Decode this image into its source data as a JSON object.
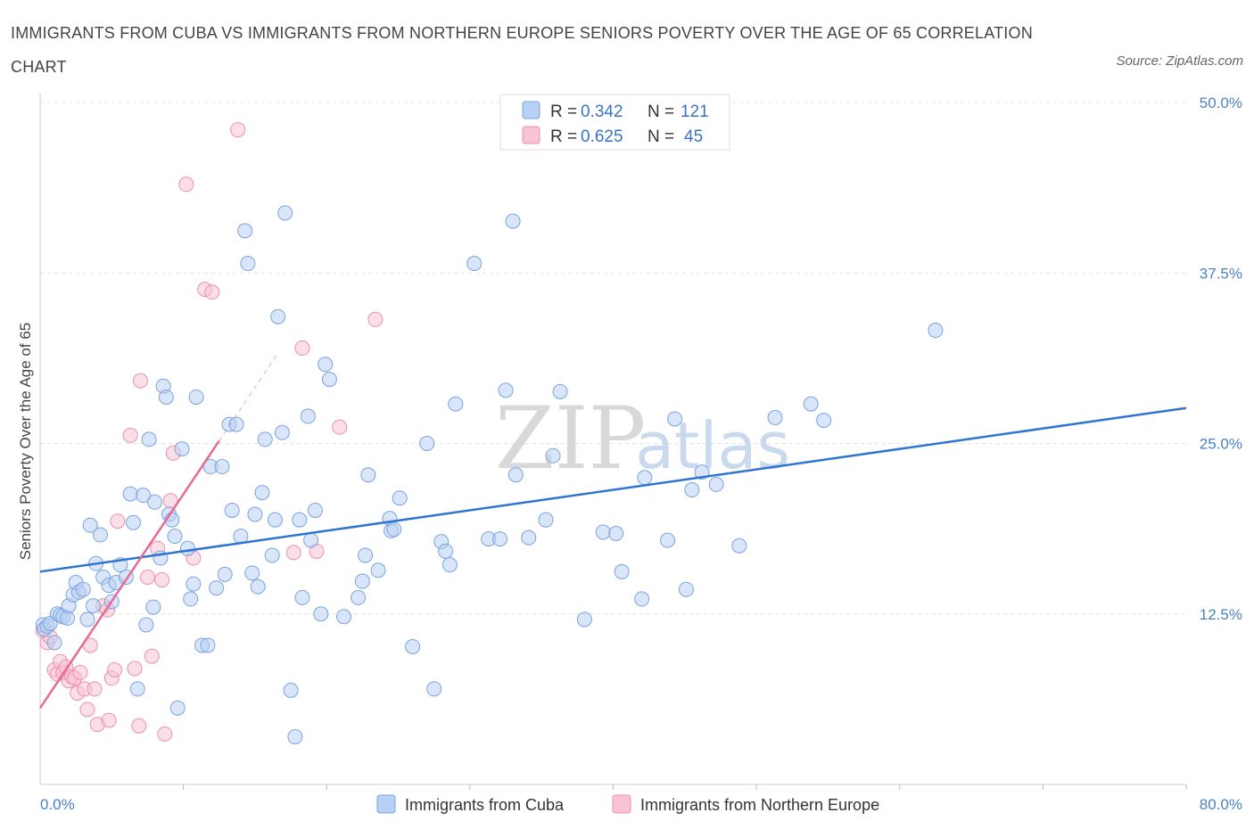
{
  "title": "IMMIGRANTS FROM CUBA VS IMMIGRANTS FROM NORTHERN EUROPE SENIORS POVERTY OVER THE AGE OF 65 CORRELATION CHART",
  "source": "Source: ZipAtlas.com",
  "watermark": {
    "zip": "ZIP",
    "atlas": "atlas"
  },
  "colors": {
    "cuba_fill": "#b9cff3",
    "cuba_stroke": "#7aa3e0",
    "cuba_line": "#2f74d0",
    "ne_fill": "#f8c4d4",
    "ne_stroke": "#ec8fae",
    "ne_line": "#e66a96",
    "grid": "#e0e0e0",
    "axis_text": "#4a7fc8"
  },
  "legend": {
    "cuba": {
      "r_label": "R = ",
      "r_value": "0.342",
      "n_label": "N = ",
      "n_value": "121"
    },
    "ne": {
      "r_label": "R = ",
      "r_value": "0.625",
      "n_label": "N = ",
      "n_value": "45"
    }
  },
  "bottom_legend": {
    "cuba": "Immigrants from Cuba",
    "ne": "Immigrants from Northern Europe"
  },
  "chart_data": {
    "type": "scatter",
    "title": "IMMIGRANTS FROM CUBA VS IMMIGRANTS FROM NORTHERN EUROPE SENIORS POVERTY OVER THE AGE OF 65 CORRELATION CHART",
    "xlabel": "",
    "ylabel": "Seniors Poverty Over the Age of 65",
    "xlim": [
      0,
      80
    ],
    "ylim": [
      0,
      50
    ],
    "x_tick_labels": [
      "0.0%",
      "80.0%"
    ],
    "y_ticks": [
      12.5,
      25,
      37.5,
      50
    ],
    "y_tick_labels": [
      "12.5%",
      "25.0%",
      "37.5%",
      "50.0%"
    ],
    "grid": "horizontal dashed",
    "legend_position": "top-center",
    "series": [
      {
        "name": "Immigrants from Cuba",
        "R": 0.342,
        "N": 121,
        "trend": {
          "x": [
            0,
            80
          ],
          "y": [
            15.6,
            27.6
          ]
        },
        "points": [
          [
            0.2,
            11.7
          ],
          [
            0.3,
            11.4
          ],
          [
            0.5,
            11.6
          ],
          [
            0.7,
            11.8
          ],
          [
            1.0,
            10.4
          ],
          [
            1.2,
            12.5
          ],
          [
            1.4,
            12.4
          ],
          [
            1.6,
            12.3
          ],
          [
            1.9,
            12.2
          ],
          [
            2.0,
            13.1
          ],
          [
            2.3,
            13.9
          ],
          [
            2.5,
            14.8
          ],
          [
            2.7,
            14.1
          ],
          [
            3.0,
            14.3
          ],
          [
            3.3,
            12.1
          ],
          [
            3.5,
            19.0
          ],
          [
            3.7,
            13.1
          ],
          [
            3.9,
            16.2
          ],
          [
            4.2,
            18.3
          ],
          [
            4.4,
            15.2
          ],
          [
            4.8,
            14.6
          ],
          [
            5.0,
            13.4
          ],
          [
            5.3,
            14.8
          ],
          [
            5.6,
            16.1
          ],
          [
            6.0,
            15.2
          ],
          [
            6.3,
            21.3
          ],
          [
            6.5,
            19.2
          ],
          [
            6.8,
            7.0
          ],
          [
            7.2,
            21.2
          ],
          [
            7.4,
            11.7
          ],
          [
            7.6,
            25.3
          ],
          [
            7.9,
            13.0
          ],
          [
            8.0,
            20.7
          ],
          [
            8.4,
            16.6
          ],
          [
            8.6,
            29.2
          ],
          [
            8.8,
            28.4
          ],
          [
            9.0,
            19.8
          ],
          [
            9.2,
            19.4
          ],
          [
            9.4,
            18.2
          ],
          [
            9.6,
            5.6
          ],
          [
            9.9,
            24.6
          ],
          [
            10.3,
            17.3
          ],
          [
            10.5,
            13.6
          ],
          [
            10.7,
            14.7
          ],
          [
            10.9,
            28.4
          ],
          [
            11.3,
            10.2
          ],
          [
            11.7,
            10.2
          ],
          [
            11.9,
            23.3
          ],
          [
            12.3,
            14.4
          ],
          [
            12.7,
            23.3
          ],
          [
            12.9,
            15.4
          ],
          [
            13.2,
            26.4
          ],
          [
            13.4,
            20.1
          ],
          [
            13.7,
            26.4
          ],
          [
            14.0,
            18.2
          ],
          [
            14.3,
            40.6
          ],
          [
            14.5,
            38.2
          ],
          [
            14.8,
            15.5
          ],
          [
            15.0,
            19.8
          ],
          [
            15.2,
            14.5
          ],
          [
            15.5,
            21.4
          ],
          [
            15.7,
            25.3
          ],
          [
            16.2,
            16.8
          ],
          [
            16.4,
            19.4
          ],
          [
            16.6,
            34.3
          ],
          [
            16.9,
            25.8
          ],
          [
            17.1,
            41.9
          ],
          [
            17.5,
            6.9
          ],
          [
            17.8,
            3.5
          ],
          [
            18.1,
            19.4
          ],
          [
            18.3,
            13.7
          ],
          [
            18.7,
            27.0
          ],
          [
            18.9,
            17.9
          ],
          [
            19.2,
            20.1
          ],
          [
            19.6,
            12.5
          ],
          [
            19.9,
            30.8
          ],
          [
            20.2,
            29.7
          ],
          [
            21.2,
            12.3
          ],
          [
            22.2,
            13.7
          ],
          [
            22.5,
            14.9
          ],
          [
            22.7,
            16.8
          ],
          [
            22.9,
            22.7
          ],
          [
            23.6,
            15.7
          ],
          [
            24.4,
            19.5
          ],
          [
            24.5,
            18.6
          ],
          [
            24.7,
            18.7
          ],
          [
            25.1,
            21.0
          ],
          [
            26.0,
            10.1
          ],
          [
            27.0,
            25.0
          ],
          [
            27.5,
            7.0
          ],
          [
            28.0,
            17.8
          ],
          [
            28.3,
            17.1
          ],
          [
            28.6,
            16.1
          ],
          [
            29.0,
            27.9
          ],
          [
            30.3,
            38.2
          ],
          [
            31.3,
            18.0
          ],
          [
            32.1,
            18.0
          ],
          [
            32.5,
            28.9
          ],
          [
            33.0,
            41.3
          ],
          [
            33.2,
            22.7
          ],
          [
            34.1,
            18.1
          ],
          [
            35.3,
            19.4
          ],
          [
            35.8,
            24.1
          ],
          [
            36.3,
            28.8
          ],
          [
            38.0,
            12.1
          ],
          [
            39.3,
            18.5
          ],
          [
            40.2,
            18.4
          ],
          [
            40.6,
            15.6
          ],
          [
            42.0,
            13.6
          ],
          [
            42.2,
            22.5
          ],
          [
            43.8,
            17.9
          ],
          [
            44.3,
            26.8
          ],
          [
            45.1,
            14.3
          ],
          [
            45.5,
            21.6
          ],
          [
            46.2,
            22.9
          ],
          [
            47.2,
            22.0
          ],
          [
            48.8,
            17.5
          ],
          [
            51.3,
            26.9
          ],
          [
            53.8,
            27.9
          ],
          [
            54.7,
            26.7
          ],
          [
            62.5,
            33.3
          ]
        ]
      },
      {
        "name": "Immigrants from Northern Europe",
        "R": 0.625,
        "N": 45,
        "trend": {
          "x": [
            0,
            25
          ],
          "y": [
            5.6,
            44.8
          ]
        },
        "points": [
          [
            0.2,
            11.3
          ],
          [
            0.5,
            10.4
          ],
          [
            0.7,
            10.8
          ],
          [
            1.0,
            8.4
          ],
          [
            1.2,
            8.1
          ],
          [
            1.4,
            9.0
          ],
          [
            1.6,
            8.2
          ],
          [
            1.8,
            8.6
          ],
          [
            2.0,
            7.6
          ],
          [
            2.2,
            7.9
          ],
          [
            2.4,
            7.8
          ],
          [
            2.6,
            6.7
          ],
          [
            2.8,
            8.2
          ],
          [
            3.1,
            7.0
          ],
          [
            3.3,
            5.5
          ],
          [
            3.5,
            10.2
          ],
          [
            3.8,
            7.0
          ],
          [
            4.0,
            4.4
          ],
          [
            4.4,
            13.1
          ],
          [
            4.7,
            12.8
          ],
          [
            4.8,
            4.7
          ],
          [
            5.0,
            7.8
          ],
          [
            5.2,
            8.4
          ],
          [
            5.4,
            19.3
          ],
          [
            6.3,
            25.6
          ],
          [
            6.6,
            8.5
          ],
          [
            6.9,
            4.3
          ],
          [
            7.0,
            29.6
          ],
          [
            7.5,
            15.2
          ],
          [
            7.8,
            9.4
          ],
          [
            8.2,
            17.3
          ],
          [
            8.5,
            15.0
          ],
          [
            8.7,
            3.7
          ],
          [
            9.1,
            20.8
          ],
          [
            9.3,
            24.3
          ],
          [
            10.2,
            44.0
          ],
          [
            10.7,
            16.6
          ],
          [
            11.5,
            36.3
          ],
          [
            12.0,
            36.1
          ],
          [
            13.8,
            48.0
          ],
          [
            17.7,
            17.0
          ],
          [
            18.3,
            32.0
          ],
          [
            19.3,
            17.1
          ],
          [
            20.9,
            26.2
          ],
          [
            23.4,
            34.1
          ]
        ]
      }
    ]
  }
}
